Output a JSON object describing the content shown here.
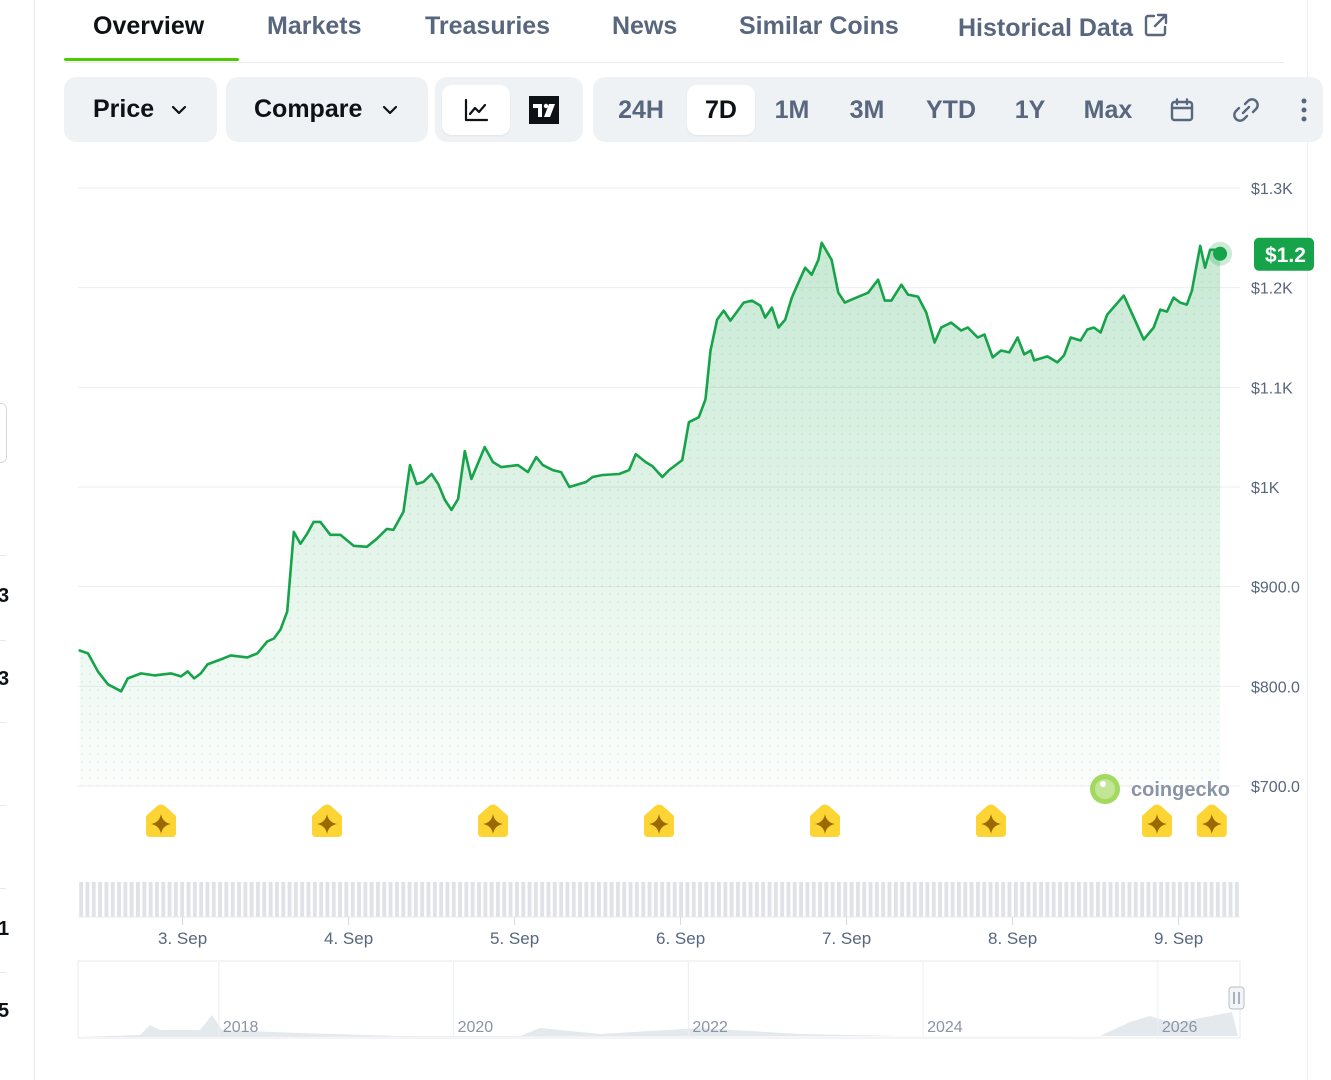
{
  "tabs": [
    {
      "label": "Overview",
      "active": true
    },
    {
      "label": "Markets"
    },
    {
      "label": "Treasuries"
    },
    {
      "label": "News"
    },
    {
      "label": "Similar Coins"
    },
    {
      "label": "Historical Data",
      "icon": "external-link-icon"
    }
  ],
  "toolbar": {
    "price_dropdown": "Price",
    "compare_dropdown": "Compare",
    "chart_types": [
      {
        "icon": "line-chart-icon",
        "selected": true
      },
      {
        "icon": "tradingview-icon",
        "selected": false
      }
    ],
    "ranges": [
      "24H",
      "7D",
      "1M",
      "3M",
      "YTD",
      "1Y",
      "Max"
    ],
    "selected_range": "7D",
    "extra_icons": [
      "calendar-icon",
      "link-icon",
      "more-icon"
    ]
  },
  "chart_data": {
    "type": "area",
    "y_tick_labels": [
      "$1.3K",
      "$1.2K",
      "$1.1K",
      "$1K",
      "$900.0",
      "$800.0",
      "$700.0"
    ],
    "y_ticks": [
      1300,
      1200,
      1100,
      1000,
      900,
      800,
      700
    ],
    "ylim": [
      700,
      1300
    ],
    "x_tick_labels": [
      "3. Sep",
      "4. Sep",
      "5. Sep",
      "6. Sep",
      "7. Sep",
      "8. Sep",
      "9. Sep"
    ],
    "x_ticks": [
      3.63,
      4.63,
      5.63,
      6.63,
      7.63,
      8.63,
      9.63
    ],
    "xlim": [
      3.0,
      10.0
    ],
    "current_price_label": "$1.2",
    "line_color": "#16a34a",
    "fill_color": "#16a34a",
    "series": [
      {
        "values": [
          [
            3.01,
            836
          ],
          [
            3.06,
            833
          ],
          [
            3.12,
            815
          ],
          [
            3.18,
            802
          ],
          [
            3.26,
            795
          ],
          [
            3.3,
            808
          ],
          [
            3.38,
            813
          ],
          [
            3.46,
            811
          ],
          [
            3.56,
            813
          ],
          [
            3.62,
            810
          ],
          [
            3.66,
            815
          ],
          [
            3.7,
            808
          ],
          [
            3.74,
            813
          ],
          [
            3.78,
            822
          ],
          [
            3.86,
            827
          ],
          [
            3.92,
            831
          ],
          [
            4.02,
            829
          ],
          [
            4.08,
            833
          ],
          [
            4.14,
            845
          ],
          [
            4.18,
            848
          ],
          [
            4.22,
            857
          ],
          [
            4.26,
            875
          ],
          [
            4.3,
            955
          ],
          [
            4.34,
            943
          ],
          [
            4.38,
            953
          ],
          [
            4.42,
            965
          ],
          [
            4.46,
            965
          ],
          [
            4.52,
            952
          ],
          [
            4.58,
            952
          ],
          [
            4.66,
            941
          ],
          [
            4.74,
            940
          ],
          [
            4.8,
            948
          ],
          [
            4.86,
            958
          ],
          [
            4.9,
            957
          ],
          [
            4.96,
            975
          ],
          [
            5.0,
            1022
          ],
          [
            5.04,
            1003
          ],
          [
            5.08,
            1005
          ],
          [
            5.13,
            1013
          ],
          [
            5.17,
            1003
          ],
          [
            5.21,
            987
          ],
          [
            5.25,
            977
          ],
          [
            5.29,
            988
          ],
          [
            5.33,
            1036
          ],
          [
            5.37,
            1008
          ],
          [
            5.45,
            1040
          ],
          [
            5.5,
            1025
          ],
          [
            5.55,
            1020
          ],
          [
            5.65,
            1022
          ],
          [
            5.71,
            1015
          ],
          [
            5.76,
            1030
          ],
          [
            5.8,
            1022
          ],
          [
            5.86,
            1017
          ],
          [
            5.91,
            1015
          ],
          [
            5.96,
            1000
          ],
          [
            6.0,
            1002
          ],
          [
            6.06,
            1005
          ],
          [
            6.1,
            1010
          ],
          [
            6.16,
            1012
          ],
          [
            6.26,
            1013
          ],
          [
            6.32,
            1017
          ],
          [
            6.36,
            1033
          ],
          [
            6.42,
            1025
          ],
          [
            6.46,
            1021
          ],
          [
            6.52,
            1010
          ],
          [
            6.56,
            1017
          ],
          [
            6.64,
            1027
          ],
          [
            6.68,
            1065
          ],
          [
            6.74,
            1070
          ],
          [
            6.78,
            1088
          ],
          [
            6.81,
            1137
          ],
          [
            6.85,
            1168
          ],
          [
            6.89,
            1177
          ],
          [
            6.93,
            1167
          ],
          [
            7.01,
            1185
          ],
          [
            7.06,
            1187
          ],
          [
            7.11,
            1182
          ],
          [
            7.14,
            1170
          ],
          [
            7.18,
            1180
          ],
          [
            7.22,
            1160
          ],
          [
            7.26,
            1168
          ],
          [
            7.3,
            1190
          ],
          [
            7.34,
            1205
          ],
          [
            7.38,
            1220
          ],
          [
            7.42,
            1213
          ],
          [
            7.46,
            1228
          ],
          [
            7.48,
            1245
          ],
          [
            7.54,
            1228
          ],
          [
            7.58,
            1195
          ],
          [
            7.62,
            1185
          ],
          [
            7.66,
            1188
          ],
          [
            7.76,
            1195
          ],
          [
            7.82,
            1208
          ],
          [
            7.86,
            1187
          ],
          [
            7.9,
            1187
          ],
          [
            7.96,
            1203
          ],
          [
            8.0,
            1193
          ],
          [
            8.06,
            1191
          ],
          [
            8.11,
            1175
          ],
          [
            8.16,
            1145
          ],
          [
            8.2,
            1160
          ],
          [
            8.26,
            1165
          ],
          [
            8.32,
            1157
          ],
          [
            8.36,
            1160
          ],
          [
            8.42,
            1150
          ],
          [
            8.46,
            1153
          ],
          [
            8.51,
            1130
          ],
          [
            8.56,
            1137
          ],
          [
            8.61,
            1135
          ],
          [
            8.66,
            1150
          ],
          [
            8.7,
            1133
          ],
          [
            8.74,
            1137
          ],
          [
            8.76,
            1127
          ],
          [
            8.84,
            1131
          ],
          [
            8.9,
            1125
          ],
          [
            8.94,
            1132
          ],
          [
            8.98,
            1150
          ],
          [
            9.04,
            1147
          ],
          [
            9.08,
            1158
          ],
          [
            9.12,
            1160
          ],
          [
            9.16,
            1155
          ],
          [
            9.2,
            1173
          ],
          [
            9.3,
            1192
          ],
          [
            9.36,
            1170
          ],
          [
            9.42,
            1148
          ],
          [
            9.48,
            1160
          ],
          [
            9.52,
            1178
          ],
          [
            9.56,
            1176
          ],
          [
            9.6,
            1190
          ],
          [
            9.64,
            1185
          ],
          [
            9.68,
            1183
          ],
          [
            9.71,
            1197
          ],
          [
            9.76,
            1242
          ],
          [
            9.79,
            1220
          ],
          [
            9.82,
            1238
          ],
          [
            9.85,
            1238
          ],
          [
            9.88,
            1236
          ]
        ]
      }
    ],
    "volume": [
      5,
      5,
      5,
      5,
      5,
      5,
      5,
      5,
      5,
      5,
      5,
      5,
      5,
      5,
      5,
      5,
      5,
      5,
      5,
      5,
      5,
      5,
      5,
      5,
      5,
      5,
      5,
      5,
      5,
      5,
      5,
      5,
      5,
      5,
      5,
      5,
      5,
      5,
      5,
      5,
      5,
      5,
      5,
      5,
      5,
      5,
      5,
      5,
      5,
      5,
      5,
      5,
      5,
      5,
      5,
      5,
      5,
      5,
      5,
      5,
      5,
      5,
      5,
      5,
      5,
      5,
      5,
      5,
      5,
      5,
      5,
      5,
      5,
      5,
      5,
      5,
      5,
      5,
      5,
      5,
      5,
      5,
      5,
      5,
      5,
      5,
      5,
      5,
      5,
      5,
      5,
      5,
      5,
      5,
      5,
      5,
      5,
      5,
      5,
      5,
      5,
      5,
      5,
      5,
      5,
      5,
      5,
      5,
      5,
      5,
      5,
      5,
      5,
      5,
      5,
      5,
      5,
      5,
      5,
      5,
      5,
      5,
      5,
      5,
      5,
      5,
      5,
      5,
      5,
      5,
      5,
      5,
      5,
      5,
      5,
      5,
      5,
      5,
      5,
      5,
      5,
      5,
      5,
      5,
      5,
      5,
      5,
      5,
      5,
      5,
      5,
      5,
      5,
      5,
      5,
      5,
      5,
      5,
      5,
      5,
      5,
      5,
      5,
      5,
      5,
      5,
      5,
      5,
      5,
      5,
      5,
      5,
      5,
      5,
      5,
      5,
      5,
      5,
      5,
      5,
      5,
      5,
      5,
      5
    ],
    "event_markers_x": [
      3.5,
      4.5,
      5.5,
      6.5,
      7.5,
      8.5,
      9.5,
      9.83
    ],
    "watermark": "coingecko",
    "navigator": {
      "tick_labels": [
        "2018",
        "2020",
        "2022",
        "2024",
        "2026"
      ],
      "ticks": [
        2017.5,
        2019.5,
        2021.5,
        2023.5,
        2025.5
      ],
      "xlim": [
        2016.3,
        2026.2
      ]
    }
  },
  "colors": {
    "accent_green": "#4bcc00",
    "price_green": "#16a34a",
    "text_primary": "#0d1217",
    "text_secondary": "#58667e",
    "pill_bg": "#eff2f5",
    "marker_yellow": "#fcd535"
  }
}
